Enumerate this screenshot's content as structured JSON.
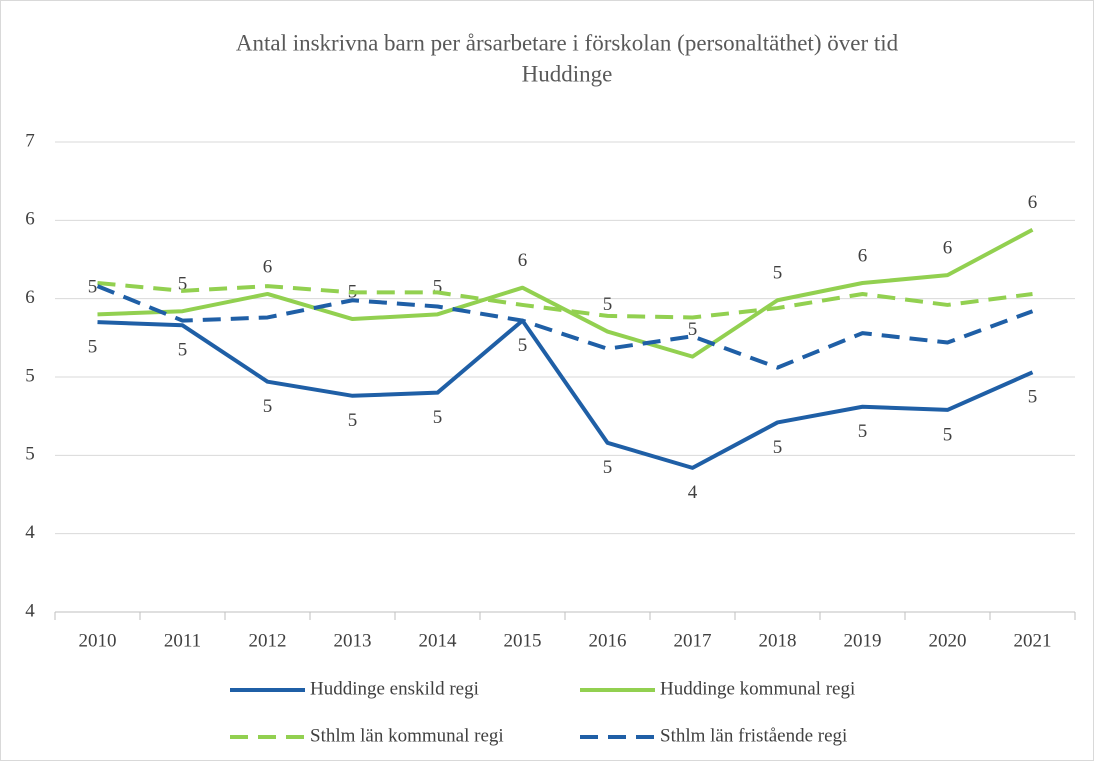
{
  "chart_data": {
    "type": "line",
    "title": "Antal inskrivna barn per årsarbetare i förskolan (personaltäthet) över tid",
    "subtitle": "Huddinge",
    "categories": [
      "2010",
      "2011",
      "2012",
      "2013",
      "2014",
      "2015",
      "2016",
      "2017",
      "2018",
      "2019",
      "2020",
      "2021"
    ],
    "ylim": [
      3.5,
      6.5
    ],
    "yticks": [
      {
        "value": 3.5,
        "label": "4"
      },
      {
        "value": 4.0,
        "label": "4"
      },
      {
        "value": 4.5,
        "label": "5"
      },
      {
        "value": 5.0,
        "label": "5"
      },
      {
        "value": 5.5,
        "label": "6"
      },
      {
        "value": 6.0,
        "label": "6"
      },
      {
        "value": 6.5,
        "label": "7"
      }
    ],
    "grid": true,
    "legend": "bottom",
    "series": [
      {
        "name": "Huddinge enskild regi",
        "color": "#1f5fa6",
        "dash": false,
        "label_position": "below",
        "values": [
          5.35,
          5.33,
          4.97,
          4.88,
          4.9,
          5.36,
          4.58,
          4.42,
          4.71,
          4.81,
          4.79,
          5.03
        ],
        "value_labels": [
          "5",
          "5",
          "5",
          "5",
          "5",
          "5",
          "5",
          "4",
          "5",
          "5",
          "5",
          "5"
        ]
      },
      {
        "name": "Huddinge kommunal regi",
        "color": "#92d050",
        "dash": false,
        "label_position": "above",
        "values": [
          5.4,
          5.42,
          5.53,
          5.37,
          5.4,
          5.57,
          5.29,
          5.13,
          5.49,
          5.6,
          5.65,
          5.94
        ],
        "value_labels": [
          "5",
          "5",
          "6",
          "5",
          "5",
          "6",
          "5",
          "5",
          "5",
          "6",
          "6",
          "6"
        ]
      },
      {
        "name": "Sthlm län kommunal regi",
        "color": "#92d050",
        "dash": true,
        "values": [
          5.6,
          5.55,
          5.58,
          5.54,
          5.54,
          5.46,
          5.39,
          5.38,
          5.44,
          5.53,
          5.46,
          5.53
        ]
      },
      {
        "name": "Sthlm län fristående regi",
        "color": "#1f5fa6",
        "dash": true,
        "values": [
          5.58,
          5.36,
          5.38,
          5.49,
          5.45,
          5.36,
          5.18,
          5.26,
          5.06,
          5.28,
          5.22,
          5.42
        ]
      }
    ]
  }
}
